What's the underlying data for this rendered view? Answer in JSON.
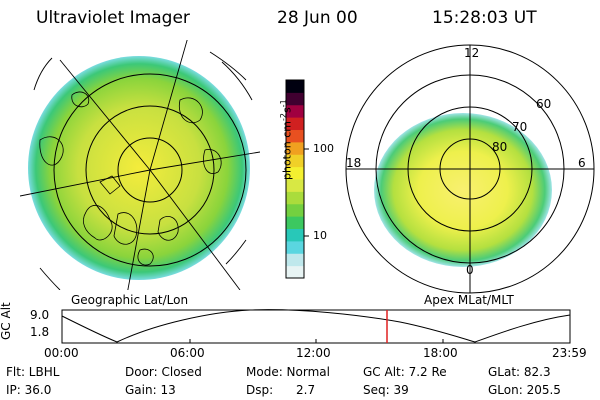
{
  "header": {
    "instrument": "Ultraviolet Imager",
    "date": "28 Jun 00",
    "time": "15:28:03 UT"
  },
  "geo_panel": {
    "caption": "Geographic Lat/Lon"
  },
  "mag_panel": {
    "caption": "Apex MLat/MLT",
    "mlt_labels": {
      "top": "12",
      "left": "18",
      "right": "6",
      "bottom": "0"
    },
    "mlat_labels": [
      "60",
      "70",
      "80"
    ]
  },
  "colorbar": {
    "label": "photon cm",
    "label_exp1": "-2",
    "label_s": "s",
    "label_exp2": "-1",
    "ticks": [
      "100",
      "10"
    ],
    "colors": [
      "#e8f4f4",
      "#bfe8ec",
      "#5ad6e0",
      "#28c8b8",
      "#3cc860",
      "#74d040",
      "#aadc3c",
      "#d8e844",
      "#f4f030",
      "#f0d028",
      "#f0a020",
      "#e85020",
      "#d02020",
      "#a00040",
      "#400030",
      "#000010"
    ]
  },
  "altitude_plot": {
    "ylabel": "GC Alt",
    "yticks": [
      "9.0",
      "1.8"
    ],
    "xticks": [
      "00:00",
      "06:00",
      "12:00",
      "18:00",
      "23:59"
    ],
    "marker_color": "#e02020"
  },
  "status": {
    "row1": {
      "flt": "Flt: LBHL",
      "door": "Door: Closed",
      "mode": "Mode: Normal",
      "gcalt": "GC Alt: 7.2 Re",
      "glat": "GLat: 82.3"
    },
    "row2": {
      "ip": "IP: 36.0",
      "gain": "Gain: 13",
      "dsp_label": "Dsp:",
      "dsp_value": "2.7",
      "seq": "Seq: 39",
      "glon": "GLon: 205.5"
    }
  }
}
